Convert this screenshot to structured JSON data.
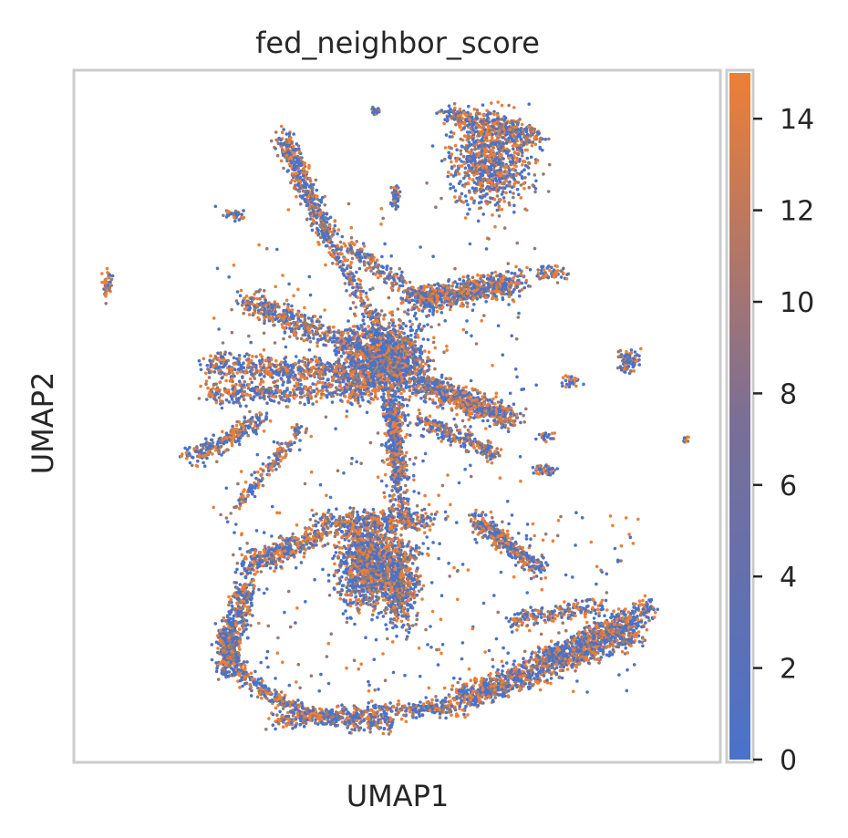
{
  "chart_data": {
    "type": "scatter",
    "title": "fed_neighbor_score",
    "xlabel": "UMAP1",
    "ylabel": "UMAP2",
    "x_ticks_shown": false,
    "y_ticks_shown": false,
    "grid": false,
    "colorbar": {
      "range": [
        0,
        15
      ],
      "ticks": [
        0,
        2,
        4,
        6,
        8,
        10,
        12,
        14
      ],
      "tick_labels": [
        "0",
        "2",
        "4",
        "6",
        "8",
        "10",
        "12",
        "14"
      ],
      "low_color": "#4a72c9",
      "mid_color": "#7b6f95",
      "high_color": "#ed7f35"
    },
    "point_colors": {
      "low": "#4a72c9",
      "mid": "#9a7a6e",
      "high": "#ed7f35"
    }
  }
}
